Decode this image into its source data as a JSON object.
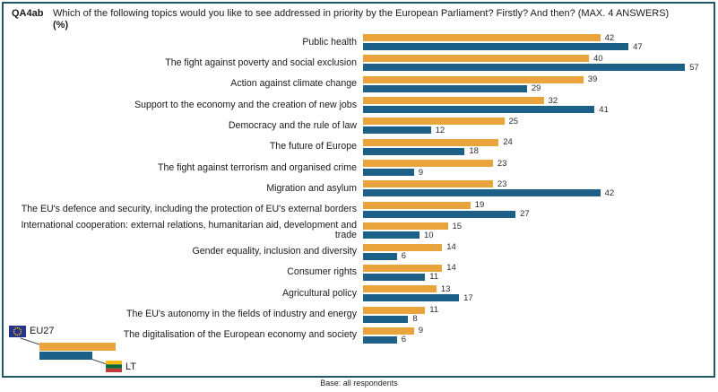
{
  "header": {
    "code": "QA4ab",
    "question": "Which of the following topics would you like to see addressed in priority by the European Parliament? Firstly? And then? (MAX. 4 ANSWERS)",
    "unit": "(%)"
  },
  "chart_data": {
    "type": "bar",
    "orientation": "horizontal",
    "title": "QA4ab Which of the following topics would you like to see addressed in priority by the European Parliament? Firstly? And then? (MAX. 4 ANSWERS) (%)",
    "categories": [
      "Public health",
      "The fight against poverty and social exclusion",
      "Action against climate change",
      "Support to the economy and the creation of new jobs",
      "Democracy and the rule of law",
      "The future of Europe",
      "The fight against terrorism and organised crime",
      "Migration and asylum",
      "The EU's defence and security, including the protection of EU's external borders",
      "International cooperation: external relations, humanitarian aid, development and trade",
      "Gender equality, inclusion and diversity",
      "Consumer rights",
      "Agricultural policy",
      "The EU's autonomy in the fields of industry and energy",
      "The digitalisation of the European economy and society"
    ],
    "series": [
      {
        "name": "EU27",
        "color": "#E9A43C",
        "values": [
          42,
          40,
          39,
          32,
          25,
          24,
          23,
          23,
          19,
          15,
          14,
          14,
          13,
          11,
          9
        ]
      },
      {
        "name": "LT",
        "color": "#1D6087",
        "values": [
          47,
          57,
          29,
          41,
          12,
          18,
          9,
          42,
          27,
          10,
          6,
          11,
          17,
          8,
          6
        ]
      }
    ],
    "xlim": [
      0,
      60
    ],
    "value_labels": true,
    "grid": false,
    "legend_position": "bottom-left"
  },
  "legend": {
    "eu_label": "EU27",
    "country_label": "LT"
  },
  "footer": {
    "base_note": "Base: all respondents"
  },
  "colors": {
    "eu27_bar": "#E9A43C",
    "lt_bar": "#1D6087",
    "frame_border": "#1f5b66",
    "eu_flag_blue": "#27348B",
    "eu_flag_stars": "#FFCC00",
    "lt_flag_yellow": "#FDB913",
    "lt_flag_green": "#046A38",
    "lt_flag_red": "#BE3A34"
  }
}
